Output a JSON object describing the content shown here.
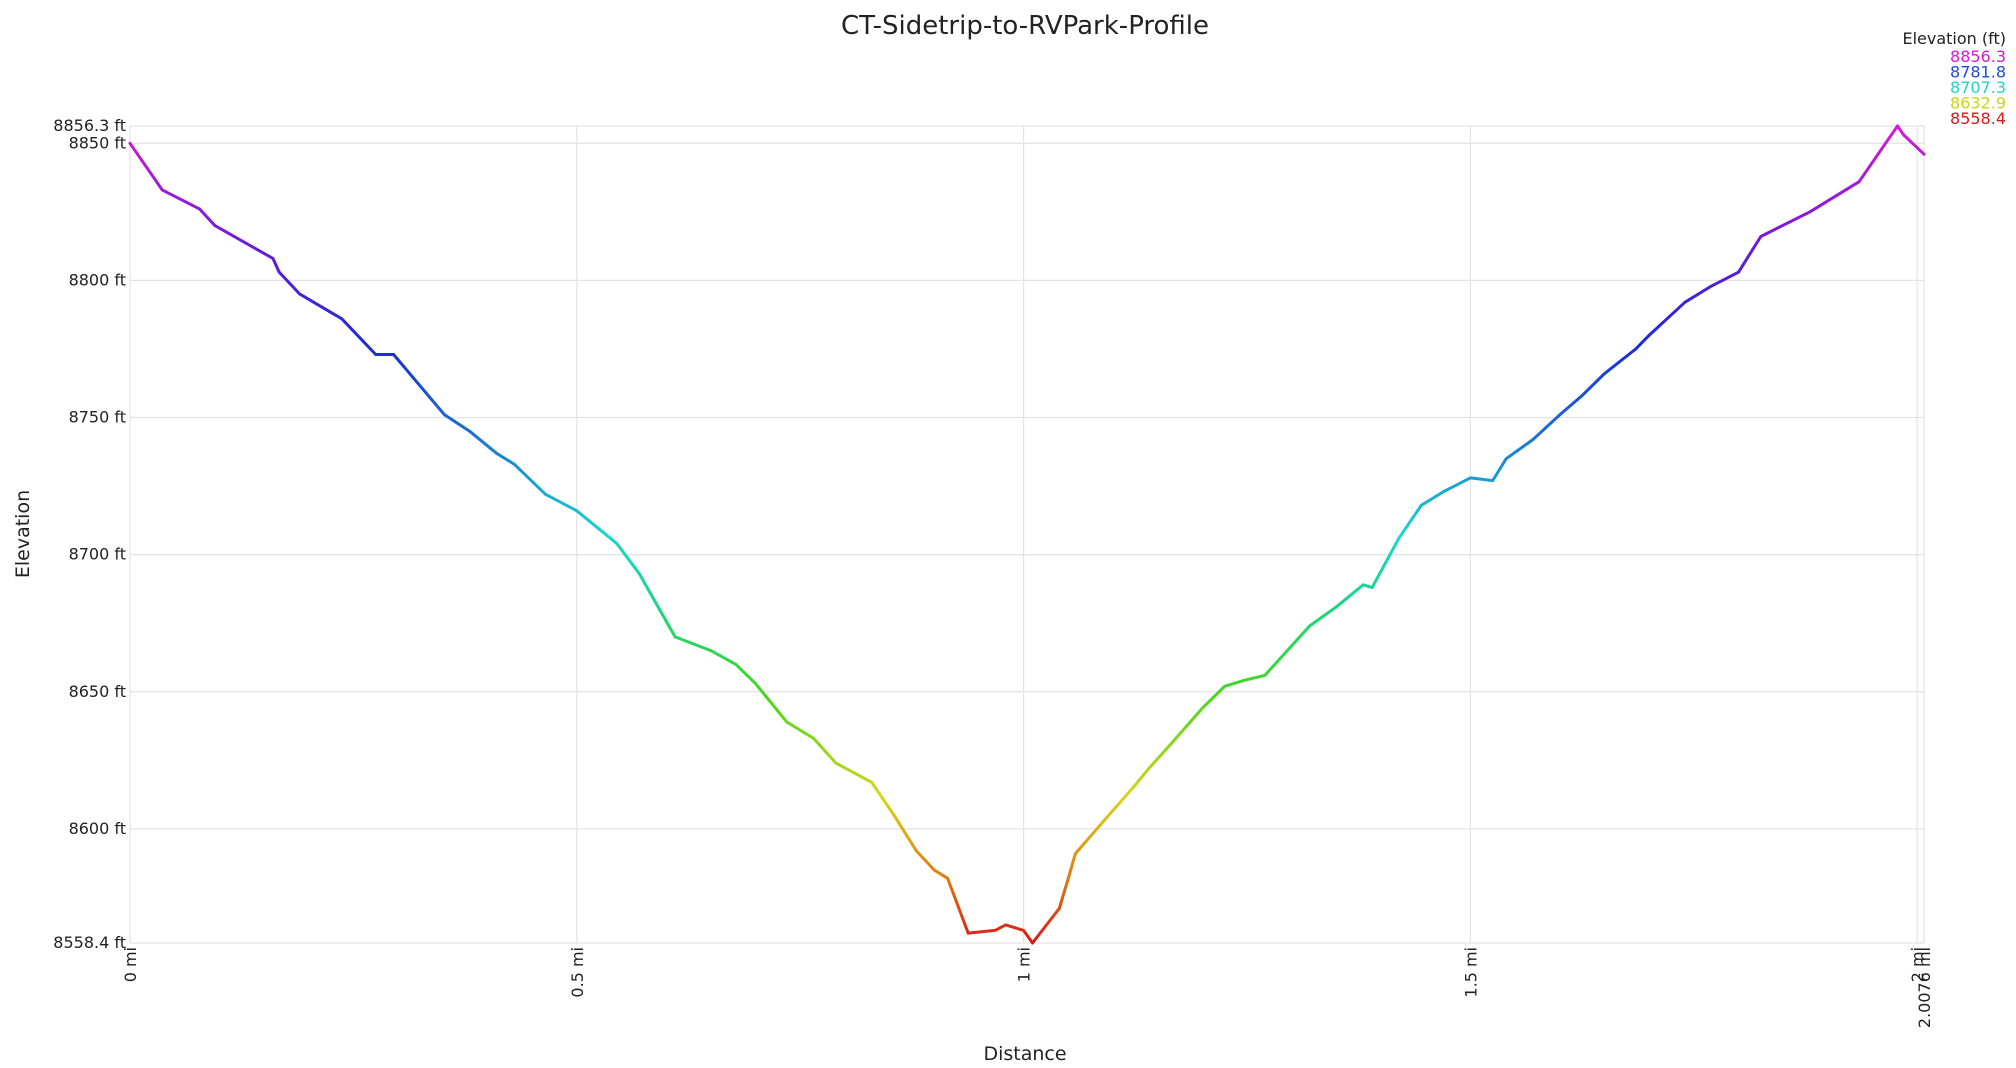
{
  "chart_data": {
    "type": "line",
    "title": "CT-Sidetrip-to-RVPark-Profile",
    "xlabel": "Distance",
    "ylabel": "Elevation",
    "xlim": [
      0,
      2.0076
    ],
    "ylim": [
      8558.4,
      8856.3
    ],
    "x_ticks": [
      {
        "value": 0,
        "label": "0 mi"
      },
      {
        "value": 0.5,
        "label": "0.5 mi"
      },
      {
        "value": 1,
        "label": "1 mi"
      },
      {
        "value": 1.5,
        "label": "1.5 mi"
      },
      {
        "value": 2,
        "label": "2 mi"
      },
      {
        "value": 2.0076,
        "label": "2.0076 mi"
      }
    ],
    "y_ticks": [
      {
        "value": 8558.4,
        "label": "8558.4 ft"
      },
      {
        "value": 8600,
        "label": "8600 ft"
      },
      {
        "value": 8650,
        "label": "8650 ft"
      },
      {
        "value": 8700,
        "label": "8700 ft"
      },
      {
        "value": 8750,
        "label": "8750 ft"
      },
      {
        "value": 8800,
        "label": "8800 ft"
      },
      {
        "value": 8850,
        "label": "8850 ft"
      },
      {
        "value": 8856.3,
        "label": "8856.3 ft"
      }
    ],
    "grid": true,
    "legend": {
      "title": "Elevation (ft)",
      "placement": "top-right",
      "entries": [
        {
          "label": "8856.3",
          "color": "#d61ad6"
        },
        {
          "label": "8781.8",
          "color": "#1a4fd6"
        },
        {
          "label": "8707.3",
          "color": "#1ad6c8"
        },
        {
          "label": "8632.9",
          "color": "#c8d61a"
        },
        {
          "label": "8558.4",
          "color": "#d61a1a"
        }
      ]
    },
    "series": [
      {
        "x": [
          0,
          0.036,
          0.078,
          0.095,
          0.16,
          0.167,
          0.19,
          0.237,
          0.275,
          0.295,
          0.352,
          0.38,
          0.41,
          0.43,
          0.465,
          0.5,
          0.545,
          0.57,
          0.61,
          0.65,
          0.678,
          0.7,
          0.735,
          0.765,
          0.79,
          0.83,
          0.855,
          0.88,
          0.9,
          0.915,
          0.938,
          0.968,
          0.98,
          1.0,
          1.01,
          1.04,
          1.05,
          1.058,
          1.09,
          1.125,
          1.14,
          1.165,
          1.2,
          1.225,
          1.245,
          1.27,
          1.32,
          1.35,
          1.38,
          1.39,
          1.42,
          1.445,
          1.47,
          1.5,
          1.525,
          1.54,
          1.57,
          1.6,
          1.625,
          1.65,
          1.685,
          1.7,
          1.74,
          1.77,
          1.8,
          1.825,
          1.88,
          1.935,
          1.978,
          1.985,
          2.0076
        ],
        "y": [
          8850,
          8833,
          8826,
          8820,
          8808,
          8803,
          8795,
          8786,
          8773,
          8773,
          8751,
          8745,
          8737,
          8733,
          8722,
          8716,
          8704,
          8693,
          8670,
          8665,
          8660,
          8653,
          8639,
          8633,
          8624,
          8617,
          8605,
          8592,
          8585,
          8582,
          8562,
          8563,
          8565,
          8563,
          8558.4,
          8571,
          8582,
          8591,
          8603,
          8616,
          8622,
          8631,
          8644,
          8652,
          8654,
          8656,
          8674,
          8681,
          8689,
          8688,
          8706,
          8718,
          8723,
          8728,
          8727,
          8735,
          8742,
          8751,
          8758,
          8766,
          8775,
          8780,
          8792,
          8798,
          8803,
          8816,
          8825,
          8836,
          8856.3,
          8853,
          8846
        ]
      }
    ]
  }
}
